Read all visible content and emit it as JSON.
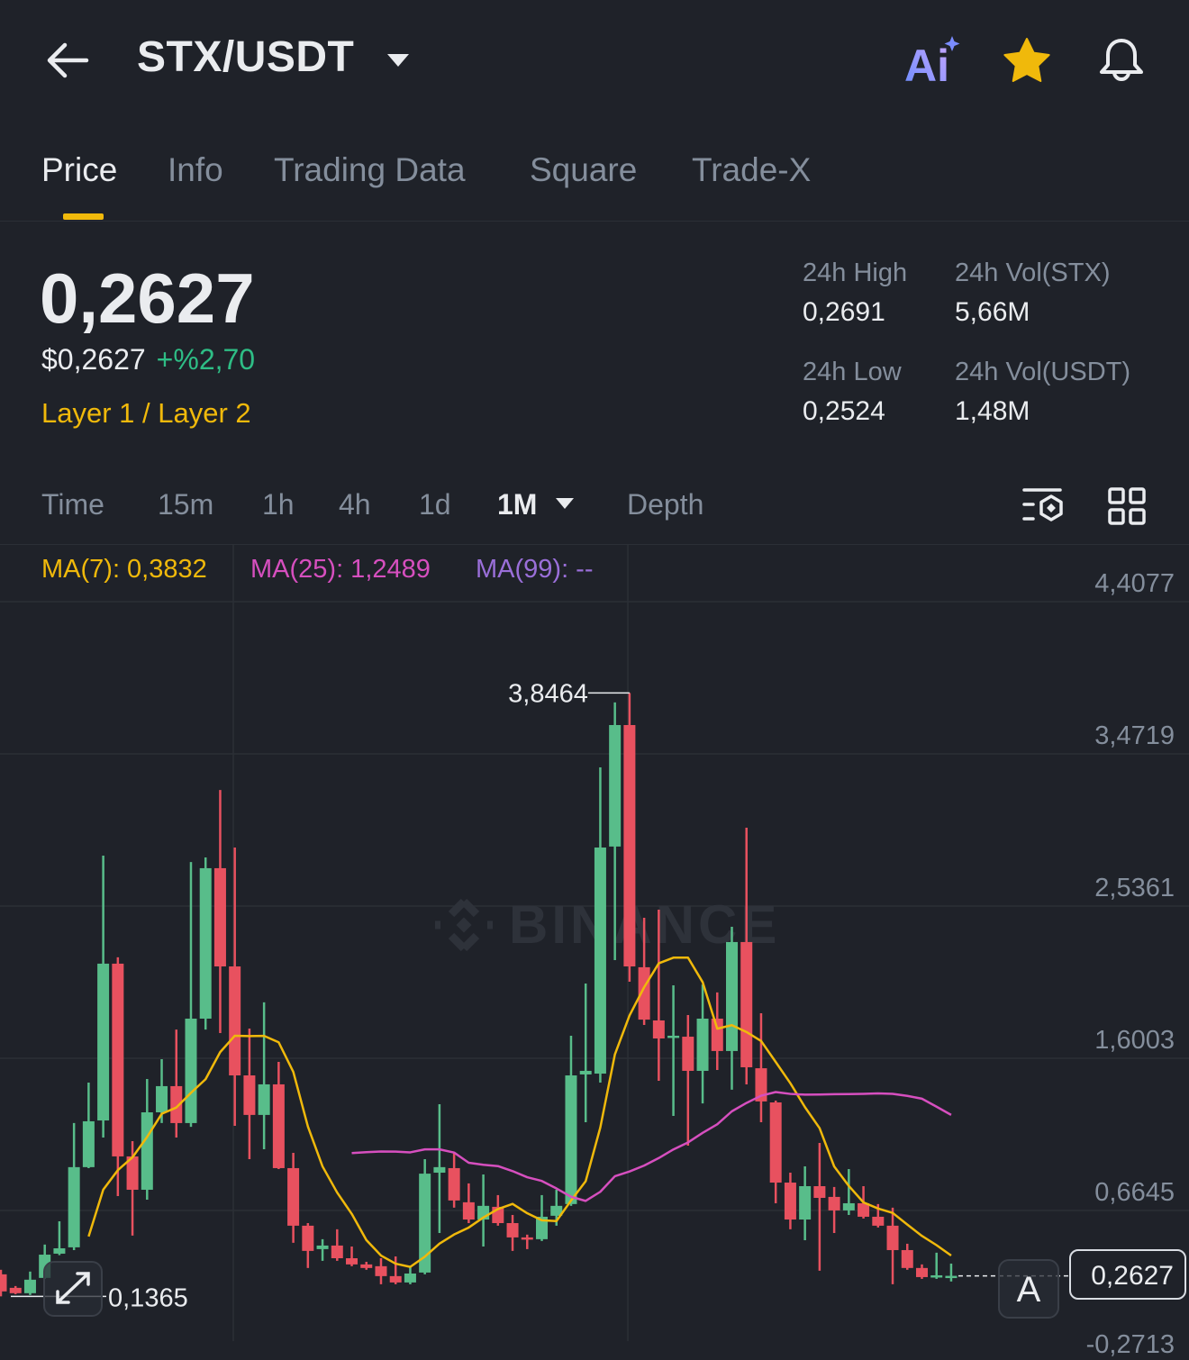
{
  "header": {
    "title": "STX/USDT",
    "icons": [
      "back-arrow-icon",
      "chevron-down-icon",
      "ai-icon",
      "star-icon",
      "bell-icon"
    ],
    "ai_label": "Ai"
  },
  "tabs": [
    {
      "label": "Price",
      "active": true
    },
    {
      "label": "Info"
    },
    {
      "label": "Trading Data"
    },
    {
      "label": "Square"
    },
    {
      "label": "Trade-X"
    }
  ],
  "ticker": {
    "last_price": "0,2627",
    "usd_price": "$0,2627",
    "change": "+%2,70",
    "category": "Layer 1 / Layer 2",
    "high_label": "24h High",
    "high": "0,2691",
    "low_label": "24h Low",
    "low": "0,2524",
    "vol_base_label": "24h Vol(STX)",
    "vol_base": "5,66M",
    "vol_quote_label": "24h Vol(USDT)",
    "vol_quote": "1,48M"
  },
  "intervals": [
    {
      "label": "Time"
    },
    {
      "label": "15m"
    },
    {
      "label": "1h"
    },
    {
      "label": "4h"
    },
    {
      "label": "1d"
    },
    {
      "label": "1M",
      "active": true
    },
    {
      "label": "Depth"
    }
  ],
  "ma_legend": {
    "ma7": "MA(7): 0,3832",
    "ma25": "MA(25): 1,2489",
    "ma99": "MA(99): --"
  },
  "colors": {
    "up": "#58bd8a",
    "down": "#e8515f",
    "ma7": "#f0b90b",
    "ma25": "#d64fbf",
    "ma99": "#9a6fd9",
    "accent": "#f0b90b",
    "background": "#1f2229"
  },
  "watermark": "BINANCE",
  "chart_data": {
    "type": "candlestick",
    "interval": "1M",
    "y_ticks": [
      "4,4077",
      "3,4719",
      "2,5361",
      "1,6003",
      "0,6645",
      "-0,2713"
    ],
    "y_tick_values": [
      4.4077,
      3.4719,
      2.5361,
      1.6003,
      0.6645,
      -0.2713
    ],
    "grid": true,
    "high_marker": {
      "label": "3,8464",
      "value": 3.8464
    },
    "low_marker": {
      "label": "0,1365",
      "value": 0.1365
    },
    "last_price": {
      "label": "0,2627",
      "value": 0.2627
    },
    "ohlc": [
      [
        0.272,
        0.3,
        0.1365,
        0.167
      ],
      [
        0.189,
        0.2,
        0.15,
        0.156
      ],
      [
        0.156,
        0.289,
        0.145,
        0.239
      ],
      [
        0.25,
        0.455,
        0.244,
        0.393
      ],
      [
        0.399,
        0.598,
        0.39,
        0.432
      ],
      [
        0.438,
        1.202,
        0.421,
        0.931
      ],
      [
        0.931,
        1.451,
        0.925,
        1.213
      ],
      [
        1.218,
        2.846,
        1.113,
        2.182
      ],
      [
        2.182,
        2.221,
        0.753,
        0.997
      ],
      [
        0.997,
        1.091,
        0.51,
        0.792
      ],
      [
        0.792,
        1.473,
        0.731,
        1.268
      ],
      [
        1.268,
        1.595,
        1.202,
        1.429
      ],
      [
        1.429,
        1.777,
        1.113,
        1.202
      ],
      [
        1.202,
        2.807,
        1.179,
        1.844
      ],
      [
        1.844,
        2.835,
        1.777,
        2.769
      ],
      [
        2.769,
        3.25,
        1.755,
        2.165
      ],
      [
        2.165,
        2.896,
        1.185,
        1.495
      ],
      [
        1.495,
        1.783,
        0.98,
        1.252
      ],
      [
        1.252,
        1.944,
        1.041,
        1.44
      ],
      [
        1.44,
        1.578,
        0.919,
        0.925
      ],
      [
        0.925,
        1.019,
        0.466,
        0.571
      ],
      [
        0.571,
        0.587,
        0.311,
        0.416
      ],
      [
        0.427,
        0.488,
        0.355,
        0.449
      ],
      [
        0.449,
        0.549,
        0.355,
        0.371
      ],
      [
        0.371,
        0.443,
        0.322,
        0.333
      ],
      [
        0.333,
        0.349,
        0.3,
        0.311
      ],
      [
        0.322,
        0.371,
        0.211,
        0.261
      ],
      [
        0.261,
        0.382,
        0.211,
        0.222
      ],
      [
        0.222,
        0.322,
        0.211,
        0.277
      ],
      [
        0.283,
        0.98,
        0.272,
        0.891
      ],
      [
        0.897,
        1.318,
        0.526,
        0.931
      ],
      [
        0.925,
        1.019,
        0.682,
        0.726
      ],
      [
        0.715,
        0.831,
        0.587,
        0.609
      ],
      [
        0.609,
        0.886,
        0.443,
        0.693
      ],
      [
        0.687,
        0.759,
        0.571,
        0.587
      ],
      [
        0.587,
        0.637,
        0.416,
        0.499
      ],
      [
        0.499,
        0.516,
        0.427,
        0.488
      ],
      [
        0.488,
        0.759,
        0.477,
        0.626
      ],
      [
        0.632,
        0.792,
        0.571,
        0.693
      ],
      [
        0.704,
        1.739,
        0.693,
        1.495
      ],
      [
        1.501,
        2.06,
        1.207,
        1.523
      ],
      [
        1.506,
        3.389,
        1.451,
        2.896
      ],
      [
        2.902,
        3.788,
        2.204,
        3.649
      ],
      [
        3.649,
        3.8464,
        2.071,
        2.165
      ],
      [
        2.16,
        2.464,
        1.805,
        1.838
      ],
      [
        1.833,
        2.514,
        1.462,
        1.722
      ],
      [
        1.728,
        2.049,
        1.246,
        1.739
      ],
      [
        1.733,
        1.866,
        1.063,
        1.523
      ],
      [
        1.523,
        2.054,
        1.323,
        1.844
      ],
      [
        1.844,
        2.005,
        1.528,
        1.645
      ],
      [
        1.645,
        2.409,
        1.407,
        2.315
      ],
      [
        2.315,
        3.018,
        1.44,
        1.545
      ],
      [
        1.539,
        1.877,
        1.207,
        1.335
      ],
      [
        1.329,
        1.34,
        0.709,
        0.836
      ],
      [
        0.836,
        0.897,
        0.549,
        0.609
      ],
      [
        0.609,
        0.936,
        0.482,
        0.814
      ],
      [
        0.814,
        1.08,
        0.294,
        0.742
      ],
      [
        0.748,
        0.809,
        0.526,
        0.665
      ],
      [
        0.665,
        0.919,
        0.637,
        0.709
      ],
      [
        0.709,
        0.814,
        0.615,
        0.626
      ],
      [
        0.626,
        0.704,
        0.56,
        0.571
      ],
      [
        0.571,
        0.682,
        0.211,
        0.421
      ],
      [
        0.421,
        0.46,
        0.3,
        0.311
      ],
      [
        0.311,
        0.333,
        0.244,
        0.255
      ],
      [
        0.255,
        0.405,
        0.244,
        0.266
      ],
      [
        0.255,
        0.338,
        0.228,
        0.2627
      ]
    ]
  }
}
